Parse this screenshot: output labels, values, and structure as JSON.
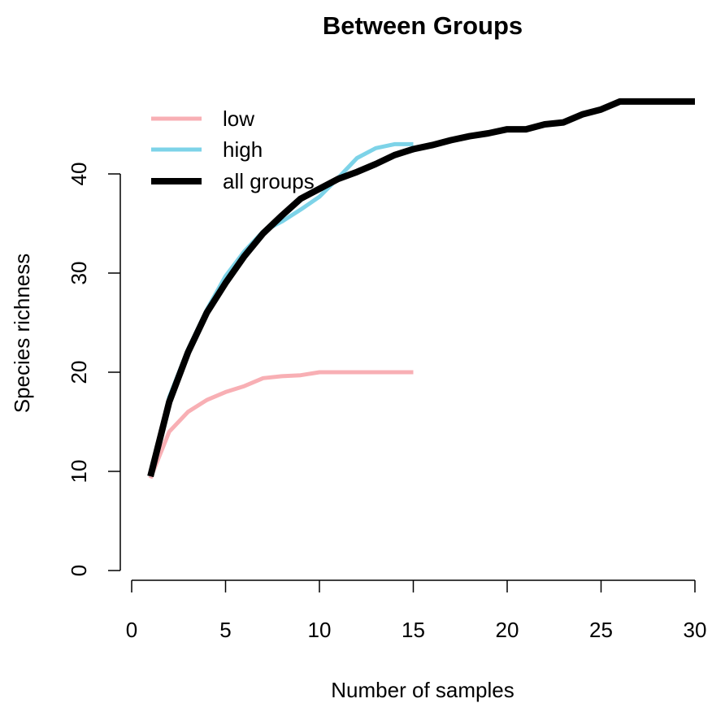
{
  "chart_data": {
    "type": "line",
    "title": "Between Groups",
    "xlabel": "Number of samples",
    "ylabel": "Species richness",
    "xlim": [
      0,
      30
    ],
    "ylim": [
      0,
      47
    ],
    "xticks": [
      0,
      5,
      10,
      15,
      20,
      25,
      30
    ],
    "yticks": [
      0,
      10,
      20,
      30,
      40
    ],
    "grid": false,
    "legend_position": "top-left",
    "series": [
      {
        "name": "low",
        "color": "#F8AFB4",
        "x": [
          1,
          2,
          3,
          4,
          5,
          6,
          7,
          8,
          9,
          10,
          11,
          12,
          13,
          14,
          15
        ],
        "y": [
          9.3,
          14,
          16,
          17.2,
          18,
          18.6,
          19.4,
          19.6,
          19.7,
          20,
          20,
          20,
          20,
          20,
          20
        ]
      },
      {
        "name": "high",
        "color": "#7DD3E8",
        "x": [
          1,
          2,
          3,
          4,
          5,
          6,
          7,
          8,
          9,
          10,
          11,
          12,
          13,
          14,
          15
        ],
        "y": [
          9.5,
          17.5,
          22.3,
          26.3,
          29.7,
          32.2,
          34.2,
          35.2,
          36.4,
          37.7,
          39.6,
          41.6,
          42.6,
          43,
          43
        ]
      },
      {
        "name": "all groups",
        "color": "#000000",
        "x": [
          1,
          2,
          3,
          4,
          5,
          6,
          7,
          8,
          9,
          10,
          11,
          12,
          13,
          14,
          15,
          16,
          17,
          18,
          19,
          20,
          21,
          22,
          23,
          24,
          25,
          26,
          27,
          28,
          29,
          30
        ],
        "y": [
          9.5,
          17,
          22,
          26,
          29,
          31.7,
          34,
          35.8,
          37.5,
          38.5,
          39.5,
          40.2,
          41,
          41.9,
          42.5,
          42.9,
          43.4,
          43.8,
          44.1,
          44.5,
          44.5,
          45,
          45.2,
          46,
          46.5,
          47.3,
          47.3,
          47.3,
          47.3,
          47.3
        ]
      }
    ]
  }
}
